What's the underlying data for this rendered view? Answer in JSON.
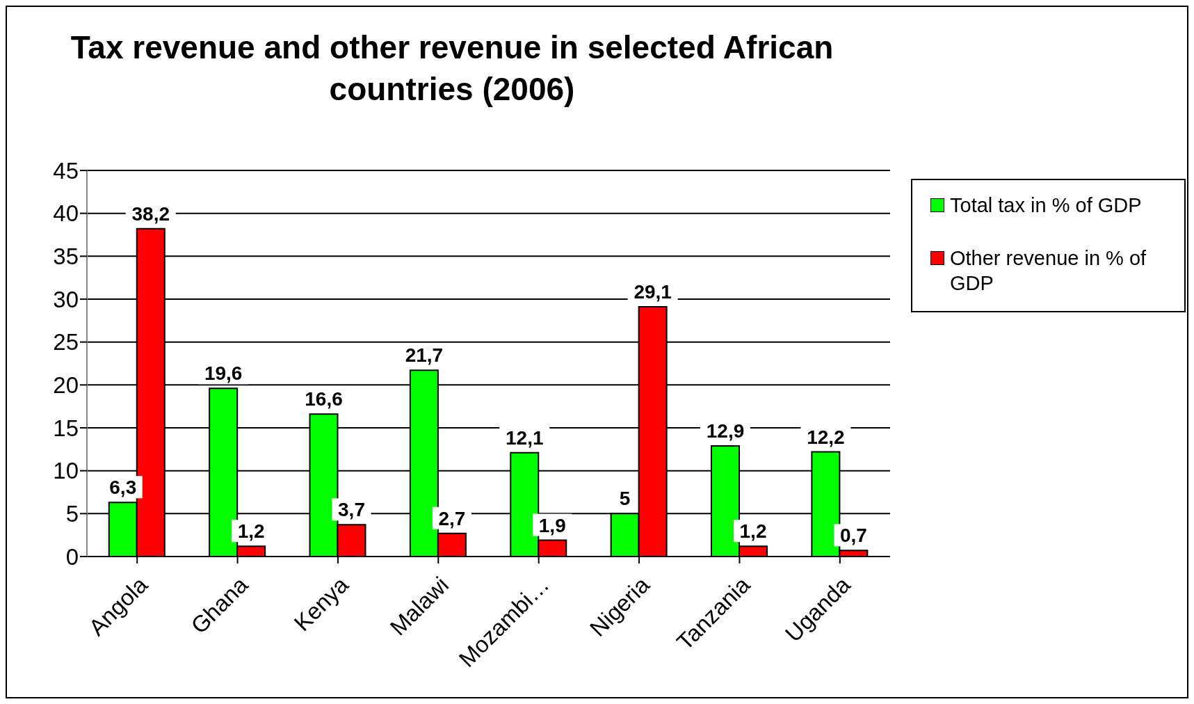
{
  "chart_data": {
    "type": "bar",
    "title": "Tax revenue and other revenue in selected African countries (2006)",
    "categories": [
      "Angola",
      "Ghana",
      "Kenya",
      "Malawi",
      "Mozambi…",
      "Nigeria",
      "Tanzania",
      "Uganda"
    ],
    "series": [
      {
        "name": "Total tax in % of GDP",
        "color": "#00ff00",
        "values": [
          6.3,
          19.6,
          16.6,
          21.7,
          12.1,
          5,
          12.9,
          12.2
        ],
        "value_labels": [
          "6,3",
          "19,6",
          "16,6",
          "21,7",
          "12,1",
          "5",
          "12,9",
          "12,2"
        ]
      },
      {
        "name": "Other revenue in % of GDP",
        "color": "#ff0000",
        "values": [
          38.2,
          1.2,
          3.7,
          2.7,
          1.9,
          29.1,
          1.2,
          0.7
        ],
        "value_labels": [
          "38,2",
          "1,2",
          "3,7",
          "2,7",
          "1,9",
          "29,1",
          "1,2",
          "0,7"
        ]
      }
    ],
    "ylim": [
      0,
      45
    ],
    "yticks": [
      0,
      5,
      10,
      15,
      20,
      25,
      30,
      35,
      40,
      45
    ],
    "grid": "y",
    "legend": "top right"
  }
}
